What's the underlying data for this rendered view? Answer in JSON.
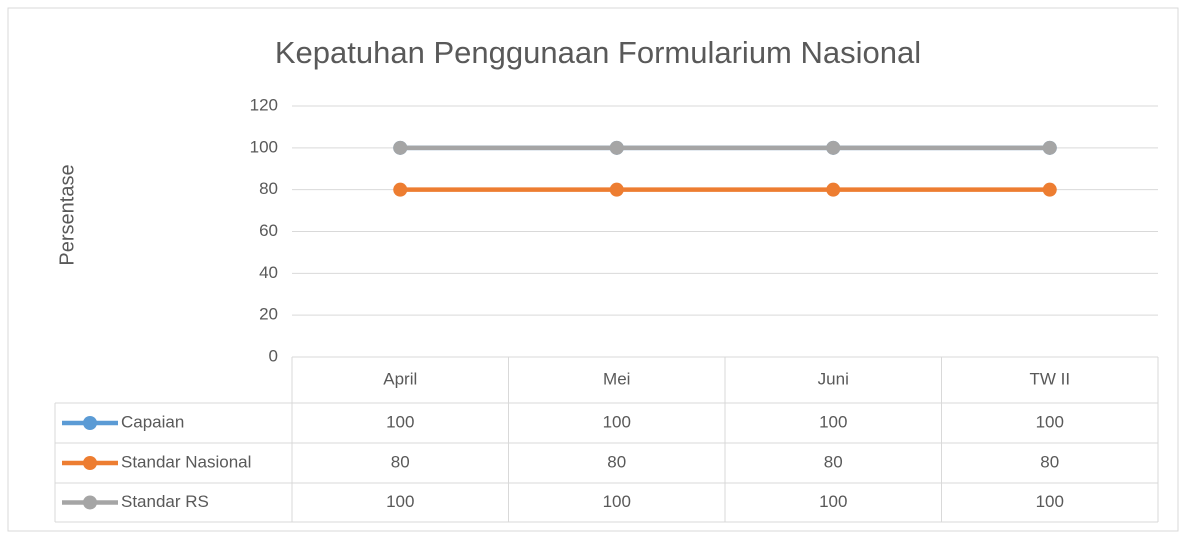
{
  "chart_data": {
    "type": "line",
    "title": "Kepatuhan Penggunaan Formularium Nasional",
    "y_label": "Persentase",
    "categories": [
      "April",
      "Mei",
      "Juni",
      "TW II"
    ],
    "series": [
      {
        "name": "Capaian",
        "color": "#5b9bd5",
        "values": [
          100,
          100,
          100,
          100
        ]
      },
      {
        "name": "Standar Nasional",
        "color": "#ed7d31",
        "values": [
          80,
          80,
          80,
          80
        ]
      },
      {
        "name": "Standar RS",
        "color": "#a5a5a5",
        "values": [
          100,
          100,
          100,
          100
        ]
      }
    ],
    "ylim": [
      0,
      120
    ],
    "yticks": [
      0,
      20,
      40,
      60,
      80,
      100,
      120
    ],
    "grid": true,
    "data_table": true
  }
}
